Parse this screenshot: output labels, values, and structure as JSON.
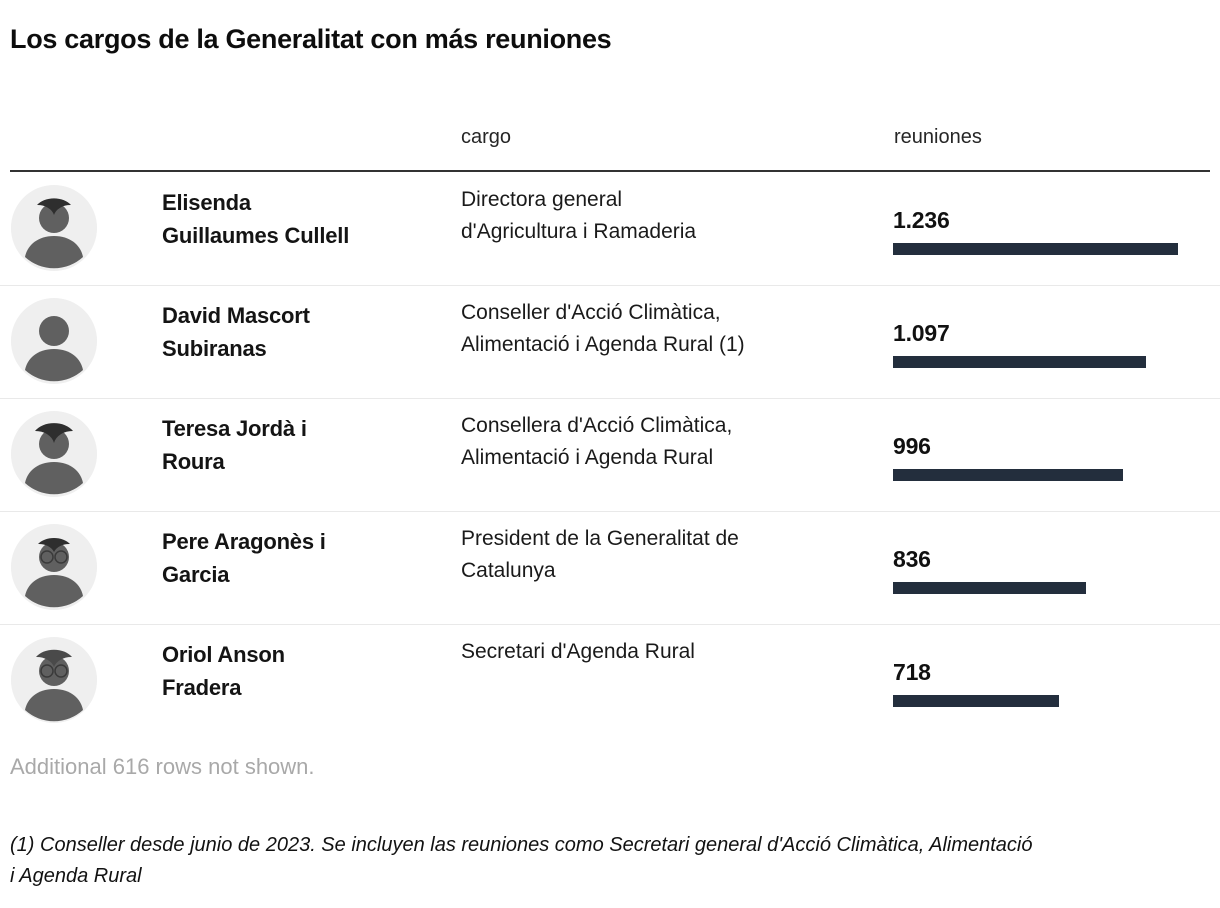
{
  "title": "Los cargos de la Generalitat con más reuniones",
  "columns": {
    "cargo": "cargo",
    "reuniones": "reuniones"
  },
  "rows": [
    {
      "name": "Elisenda Guillaumes Cullell",
      "name_lines": [
        "Elisenda",
        "Guillaumes Cullell"
      ],
      "cargo": "Directora general d'Agricultura i Ramaderia",
      "cargo_lines": [
        "Directora general",
        "d'Agricultura i Ramaderia"
      ],
      "value": 1236,
      "value_label": "1.236"
    },
    {
      "name": "David Mascort Subiranas",
      "name_lines": [
        "David Mascort",
        "Subiranas"
      ],
      "cargo": "Conseller d'Acció Climàtica, Alimentació i Agenda Rural (1)",
      "cargo_lines": [
        "Conseller d'Acció Climàtica,",
        "Alimentació i Agenda Rural (1)"
      ],
      "value": 1097,
      "value_label": "1.097"
    },
    {
      "name": "Teresa Jordà i Roura",
      "name_lines": [
        "Teresa Jordà i",
        "Roura"
      ],
      "cargo": "Consellera d'Acció Climàtica, Alimentació i Agenda Rural",
      "cargo_lines": [
        "Consellera d'Acció Climàtica,",
        "Alimentació i Agenda Rural"
      ],
      "value": 996,
      "value_label": "996"
    },
    {
      "name": "Pere Aragonès i Garcia",
      "name_lines": [
        "Pere Aragonès i",
        "Garcia"
      ],
      "cargo": "President de la Generalitat de Catalunya",
      "cargo_lines": [
        "President de la Generalitat de",
        "Catalunya"
      ],
      "value": 836,
      "value_label": "836"
    },
    {
      "name": "Oriol Anson Fradera",
      "name_lines": [
        "Oriol Anson",
        "Fradera"
      ],
      "cargo": "Secretari d'Agenda Rural",
      "cargo_lines": [
        "Secretari d'Agenda Rural"
      ],
      "value": 718,
      "value_label": "718"
    }
  ],
  "footer": {
    "additional_note": "Additional 616 rows not shown.",
    "footnote": "(1) Conseller desde junio de 2023. Se incluyen las reuniones como Secretari general d'Acció Climàtica, Alimentació i Agenda Rural",
    "footnote_lines": [
      "(1) Conseller desde junio de 2023. Se incluyen las reuniones como Secretari general d'Acció Climàtica, Alimentació",
      "i Agenda Rural"
    ]
  },
  "colors": {
    "bar": "#232e3d",
    "header_rule": "#333333",
    "row_separator": "#e9e9e9",
    "muted_text": "#a9a9a9",
    "avatar_bg": "#efefef"
  },
  "chart_data": {
    "type": "bar",
    "orientation": "horizontal",
    "title": "Los cargos de la Generalitat con más reuniones",
    "xlabel": "reuniones",
    "ylabel": "cargo",
    "categories": [
      "Elisenda Guillaumes Cullell",
      "David Mascort Subiranas",
      "Teresa Jordà i Roura",
      "Pere Aragonès i Garcia",
      "Oriol Anson Fradera"
    ],
    "category_roles": [
      "Directora general d'Agricultura i Ramaderia",
      "Conseller d'Acció Climàtica, Alimentació i Agenda Rural (1)",
      "Consellera d'Acció Climàtica, Alimentació i Agenda Rural",
      "President de la Generalitat de Catalunya",
      "Secretari d'Agenda Rural"
    ],
    "values": [
      1236,
      1097,
      996,
      836,
      718
    ],
    "value_labels": [
      "1.236",
      "1.097",
      "996",
      "836",
      "718"
    ],
    "xlim": [
      0,
      1236
    ],
    "grid": false,
    "legend": false
  }
}
